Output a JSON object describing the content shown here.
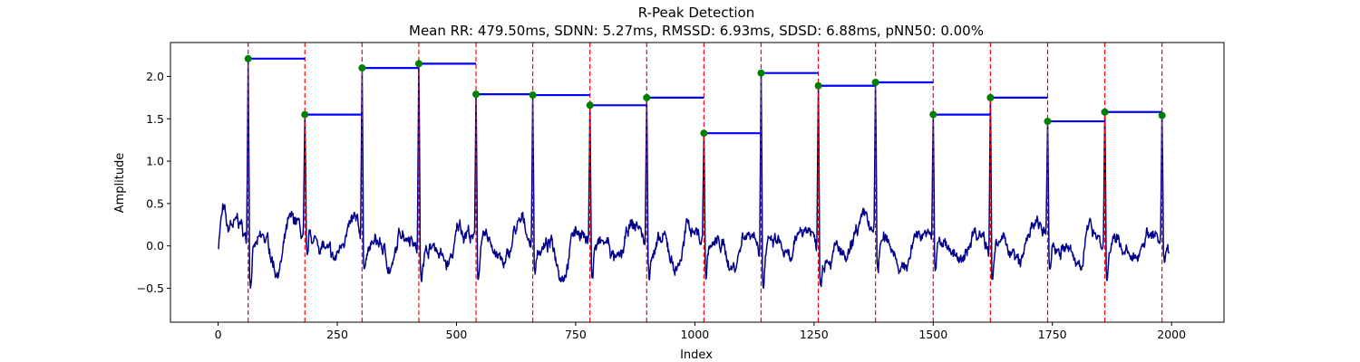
{
  "chart_data": {
    "type": "line",
    "title": "R-Peak Detection",
    "subtitle": "Mean RR: 479.50ms, SDNN: 5.27ms, RMSSD: 6.93ms, SDSD: 6.88ms, pNN50: 0.00%",
    "xlabel": "Index",
    "ylabel": "Amplitude",
    "xlim": [
      -100,
      2110
    ],
    "ylim": [
      -0.9,
      2.4
    ],
    "xticks": [
      0,
      250,
      500,
      750,
      1000,
      1250,
      1500,
      1750,
      2000
    ],
    "yticks": [
      -0.5,
      0.0,
      0.5,
      1.0,
      1.5,
      2.0
    ],
    "grid": false,
    "colors": {
      "signal": "#00008b",
      "peak_lines": "#ff0000",
      "peak_markers": "#008000",
      "rr_segments": "#0000ff"
    },
    "signal": {
      "start_index": 0,
      "end_index": 1995,
      "baseline_noise_range": [
        -0.75,
        0.7
      ]
    },
    "peaks": [
      {
        "x": 63,
        "y": 2.21
      },
      {
        "x": 182,
        "y": 1.55
      },
      {
        "x": 302,
        "y": 2.1
      },
      {
        "x": 421,
        "y": 2.15
      },
      {
        "x": 541,
        "y": 1.79
      },
      {
        "x": 660,
        "y": 1.78
      },
      {
        "x": 780,
        "y": 1.66
      },
      {
        "x": 899,
        "y": 1.75
      },
      {
        "x": 1019,
        "y": 1.33
      },
      {
        "x": 1139,
        "y": 2.04
      },
      {
        "x": 1259,
        "y": 1.89
      },
      {
        "x": 1379,
        "y": 1.93
      },
      {
        "x": 1500,
        "y": 1.55
      },
      {
        "x": 1620,
        "y": 1.75
      },
      {
        "x": 1740,
        "y": 1.47
      },
      {
        "x": 1860,
        "y": 1.58
      },
      {
        "x": 1980,
        "y": 1.54
      }
    ]
  }
}
